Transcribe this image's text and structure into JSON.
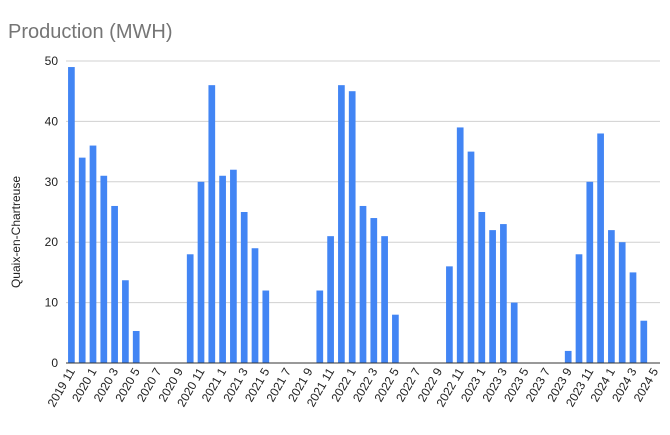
{
  "chart_data": {
    "type": "bar",
    "title": "Production (MWH)",
    "xlabel": "",
    "ylabel": "Quaix-en-Chartreuse",
    "ylim": [
      0,
      50
    ],
    "yticks": [
      0,
      10,
      20,
      30,
      40,
      50
    ],
    "grid": true,
    "legend": "none",
    "colors": {
      "bar": "#4285f4",
      "grid": "#d0d0d0",
      "title": "#757575"
    },
    "categories": [
      "2019 11",
      "2019 12",
      "2020 1",
      "2020 2",
      "2020 3",
      "2020 4",
      "2020 5",
      "2020 6",
      "2020 7",
      "2020 8",
      "2020 9",
      "2020 10",
      "2020 11",
      "2020 12",
      "2021 1",
      "2021 2",
      "2021 3",
      "2021 4",
      "2021 5",
      "2021 6",
      "2021 7",
      "2021 8",
      "2021 9",
      "2021 10",
      "2021 11",
      "2021 12",
      "2022 1",
      "2022 2",
      "2022 3",
      "2022 4",
      "2022 5",
      "2022 6",
      "2022 7",
      "2022 8",
      "2022 9",
      "2022 10",
      "2022 11",
      "2022 12",
      "2023 1",
      "2023 2",
      "2023 3",
      "2023 4",
      "2023 5",
      "2023 6",
      "2023 7",
      "2023 8",
      "2023 9",
      "2023 10",
      "2023 11",
      "2023 12",
      "2024 1",
      "2024 2",
      "2024 3",
      "2024 4",
      "2024 5"
    ],
    "values": [
      49,
      34,
      36,
      31,
      26,
      13.7,
      5.3,
      0,
      0,
      0,
      0,
      18,
      30,
      46,
      31,
      32,
      25,
      19,
      12,
      0,
      0,
      0,
      0,
      12,
      21,
      46,
      45,
      26,
      24,
      21,
      8,
      0,
      0,
      0,
      0,
      16,
      39,
      35,
      25,
      22,
      23,
      10,
      0,
      0,
      0,
      0,
      2,
      18,
      30,
      38,
      22,
      20,
      15,
      7,
      0
    ],
    "xtick_labels": [
      "2019 11",
      "2020 1",
      "2020 3",
      "2020 5",
      "2020 7",
      "2020 9",
      "2020 11",
      "2021 1",
      "2021 3",
      "2021 5",
      "2021 7",
      "2021 9",
      "2021 11",
      "2022 1",
      "2022 3",
      "2022 5",
      "2022 7",
      "2022 9",
      "2022 11",
      "2023 1",
      "2023 3",
      "2023 5",
      "2023 7",
      "2023 9",
      "2023 11",
      "2024 1",
      "2024 3",
      "2024 5"
    ]
  }
}
